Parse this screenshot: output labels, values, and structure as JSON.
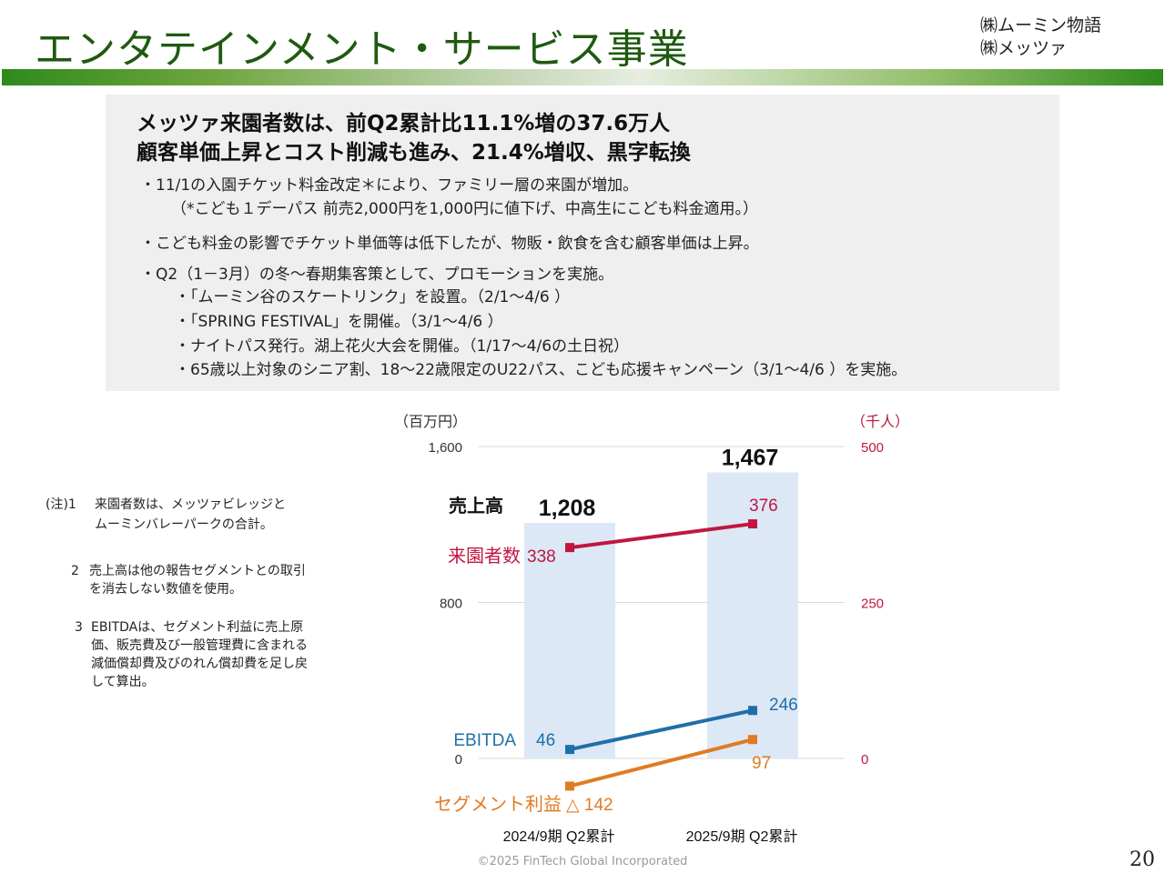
{
  "header": {
    "title": "エンタテインメント・サービス事業",
    "company_1": "㈱ムーミン物語",
    "company_2": "㈱メッツァ"
  },
  "summary": {
    "headline_1": "メッツァ来園者数は、前Q2累計比11.1%増の37.6万人",
    "headline_2": "顧客単価上昇とコスト削減も進み、21.4%増収、黒字転換",
    "bullet_1": "・11/1の入園チケット料金改定＊により、ファミリー層の来園が増加。",
    "bullet_1_note": "（*こども１デーパス 前売2,000円を1,000円に値下げ、中高生にこども料金適用。）",
    "bullet_2": "・こども料金の影響でチケット単価等は低下したが、物販・飲食を含む顧客単価は上昇。",
    "bullet_3": "・Q2（1－3月）の冬～春期集客策として、プロモーションを実施。",
    "sub_1": "・「ムーミン谷のスケートリンク」を設置。（2/1～4/6 ）",
    "sub_2": "・「SPRING FESTIVAL」を開催。（3/1～4/6 ）",
    "sub_3": "・ナイトパス発行。湖上花火大会を開催。（1/17～4/6の土日祝）",
    "sub_4": "・65歳以上対象のシニア割、18～22歳限定のU22パス、こども応援キャンペーン（3/1～4/6 ）を実施。"
  },
  "notes": {
    "note_1_num": "(注)1",
    "note_1_text_a": "来園者数は、メッツァビレッジと",
    "note_1_text_b": "ムーミンバレーパークの合計。",
    "note_2_num": "2",
    "note_2_text_a": "売上高は他の報告セグメントとの取引",
    "note_2_text_b": "を消去しない数値を使用。",
    "note_3_num": "3",
    "note_3_text_a": "EBITDAは、セグメント利益に売上原",
    "note_3_text_b": "価、販売費及び一般管理費に含まれる",
    "note_3_text_c": "減価償却費及びのれん償却費を足し戻",
    "note_3_text_d": "して算出。"
  },
  "chart_data": {
    "type": "bar",
    "categories": [
      "2024/9期 Q2累計",
      "2025/9期 Q2累計"
    ],
    "y_left_unit": "（百万円）",
    "y_right_unit": "（千人）",
    "y_left_ticks": [
      "1,600",
      "800",
      "0"
    ],
    "y_right_ticks": [
      "500",
      "250",
      "0"
    ],
    "ylim_left": [
      0,
      1600
    ],
    "ylim_right": [
      0,
      500
    ],
    "bars": {
      "name": "売上高",
      "values": [
        1208,
        1467
      ],
      "labels": [
        "1,208",
        "1,467"
      ],
      "color": "#dce8f5"
    },
    "series": [
      {
        "name": "来園者数",
        "axis": "right",
        "values": [
          338,
          376
        ],
        "labels": [
          "338",
          "376"
        ],
        "color": "#c0163f"
      },
      {
        "name": "EBITDA",
        "axis": "left",
        "values": [
          46,
          246
        ],
        "labels": [
          "46",
          "246"
        ],
        "color": "#1f6fa8"
      },
      {
        "name": "セグメント利益",
        "axis": "left",
        "values": [
          -142,
          97
        ],
        "labels": [
          "△ 142",
          "97"
        ],
        "color": "#e07b23"
      }
    ]
  },
  "footer": {
    "copyright": "©2025 FinTech Global Incorporated",
    "page_number": "20"
  }
}
